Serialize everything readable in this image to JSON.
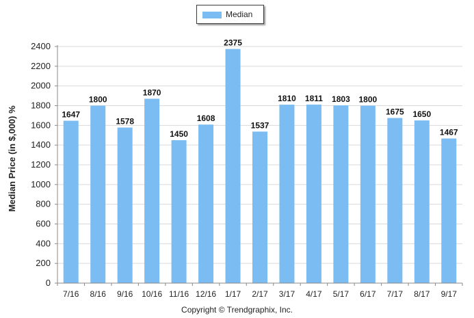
{
  "chart_data": {
    "type": "bar",
    "categories": [
      "7/16",
      "8/16",
      "9/16",
      "10/16",
      "11/16",
      "12/16",
      "1/17",
      "2/17",
      "3/17",
      "4/17",
      "5/17",
      "6/17",
      "7/17",
      "8/17",
      "9/17"
    ],
    "series": [
      {
        "name": "Median",
        "values": [
          1647,
          1800,
          1578,
          1870,
          1450,
          1608,
          2375,
          1537,
          1810,
          1811,
          1803,
          1800,
          1675,
          1650,
          1467
        ]
      }
    ],
    "title": "",
    "xlabel": "",
    "ylabel": "Median Price (in $,000) %",
    "ylim": [
      0,
      2400
    ],
    "yticks": [
      0,
      200,
      400,
      600,
      800,
      1000,
      1200,
      1400,
      1600,
      1800,
      2000,
      2200,
      2400
    ],
    "grid": true,
    "legend_position": "top-center",
    "bar_color": "#7bbcf2",
    "data_labels": true
  },
  "legend": {
    "label": "Median"
  },
  "footer": "Copyright © Trendgraphix, Inc."
}
